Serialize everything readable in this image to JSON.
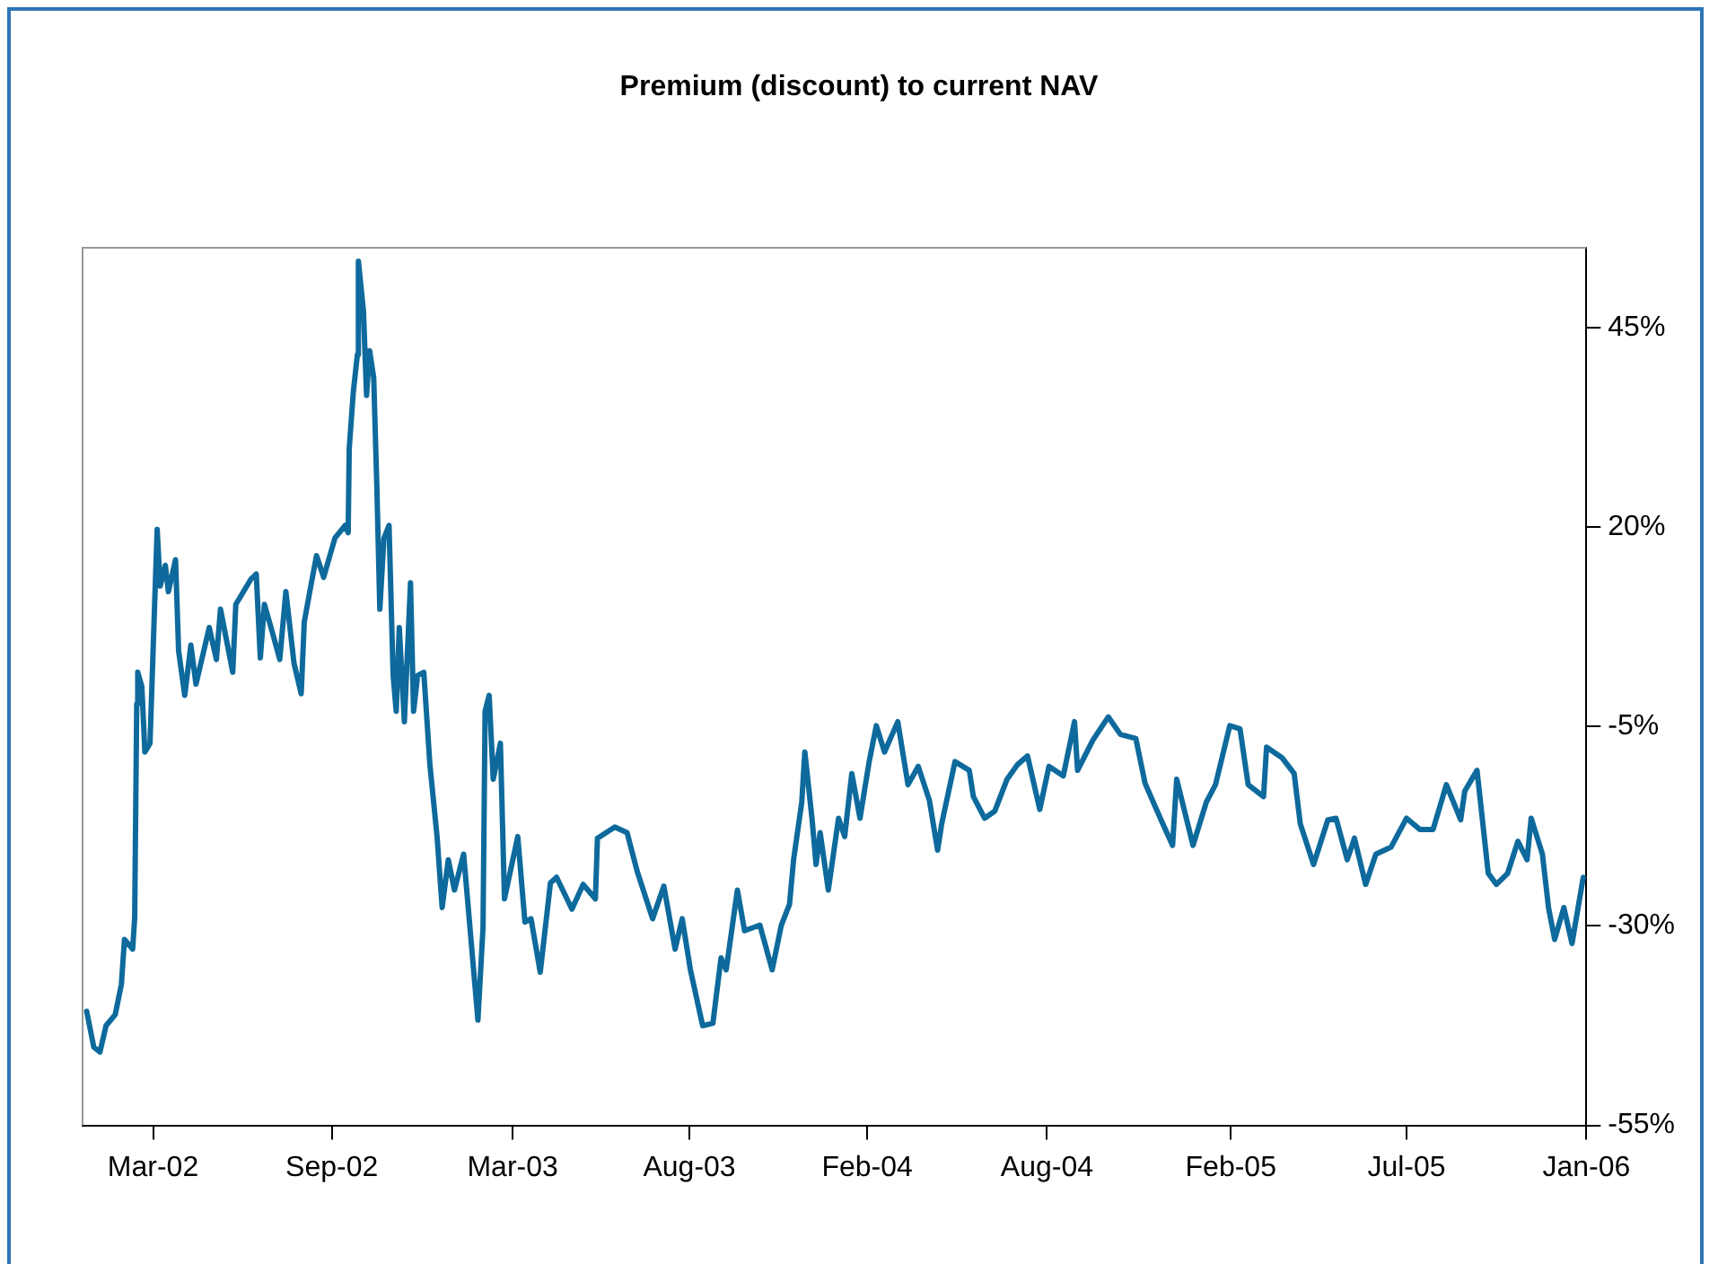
{
  "chart_data": {
    "type": "line",
    "title": "Premium (discount) to current NAV",
    "grid": false,
    "legend": false,
    "marker": "none",
    "line_style": "solid",
    "xlim": [
      "2002-01-05",
      "2006-01-16"
    ],
    "xticks": [
      {
        "value": "2002-03-15",
        "label": "Mar-02"
      },
      {
        "value": "2002-09-06",
        "label": "Sep-02"
      },
      {
        "value": "2003-03-02",
        "label": "Mar-03"
      },
      {
        "value": "2003-08-22",
        "label": "Aug-03"
      },
      {
        "value": "2004-02-12",
        "label": "Feb-04"
      },
      {
        "value": "2004-08-06",
        "label": "Aug-04"
      },
      {
        "value": "2005-02-02",
        "label": "Feb-05"
      },
      {
        "value": "2005-07-24",
        "label": "Jul-05"
      },
      {
        "value": "2006-01-16",
        "label": "Jan-06"
      }
    ],
    "ylim": [
      -55,
      55
    ],
    "yticks": [
      {
        "value": -55,
        "label": "-55%"
      },
      {
        "value": -30,
        "label": "-30%"
      },
      {
        "value": -5,
        "label": "-5%"
      },
      {
        "value": 20,
        "label": "20%"
      },
      {
        "value": 45,
        "label": "45%"
      }
    ],
    "series": [
      {
        "color": "#0e6a9c",
        "x": [
          "2002-01-09",
          "2002-01-16",
          "2002-01-22",
          "2002-01-28",
          "2002-02-06",
          "2002-02-12",
          "2002-02-15",
          "2002-02-23",
          "2002-02-25",
          "2002-02-27",
          "2002-02-28",
          "2002-03-04",
          "2002-03-07",
          "2002-03-12",
          "2002-03-19",
          "2002-03-22",
          "2002-03-27",
          "2002-03-30",
          "2002-04-06",
          "2002-04-09",
          "2002-04-15",
          "2002-04-21",
          "2002-04-26",
          "2002-05-09",
          "2002-05-16",
          "2002-05-20",
          "2002-06-01",
          "2002-06-04",
          "2002-06-19",
          "2002-06-24",
          "2002-06-28",
          "2002-07-02",
          "2002-07-10",
          "2002-07-17",
          "2002-07-23",
          "2002-07-31",
          "2002-08-07",
          "2002-08-10",
          "2002-08-17",
          "2002-08-22",
          "2002-08-29",
          "2002-09-09",
          "2002-09-19",
          "2002-09-22",
          "2002-09-23",
          "2002-09-27",
          "2002-10-01",
          "2002-10-02",
          "2002-10-07",
          "2002-10-10",
          "2002-10-13",
          "2002-10-17",
          "2002-10-20",
          "2002-10-23",
          "2002-10-27",
          "2002-11-01",
          "2002-11-05",
          "2002-11-08",
          "2002-11-11",
          "2002-11-16",
          "2002-11-22",
          "2002-11-25",
          "2002-11-29",
          "2002-12-05",
          "2002-12-11",
          "2002-12-18",
          "2002-12-23",
          "2002-12-29",
          "2003-01-04",
          "2003-01-13",
          "2003-01-19",
          "2003-01-27",
          "2003-02-01",
          "2003-02-03",
          "2003-02-07",
          "2003-02-11",
          "2003-02-18",
          "2003-02-22",
          "2003-03-07",
          "2003-03-14",
          "2003-03-20",
          "2003-03-29",
          "2003-04-08",
          "2003-04-14",
          "2003-04-29",
          "2003-05-10",
          "2003-05-22",
          "2003-05-24",
          "2003-06-10",
          "2003-06-22",
          "2003-07-02",
          "2003-07-17",
          "2003-07-28",
          "2003-08-08",
          "2003-08-15",
          "2003-08-23",
          "2003-09-04",
          "2003-09-14",
          "2003-09-22",
          "2003-09-27",
          "2003-10-08",
          "2003-10-15",
          "2003-10-30",
          "2003-11-11",
          "2003-11-20",
          "2003-11-28",
          "2003-12-02",
          "2003-12-10",
          "2003-12-13",
          "2003-12-20",
          "2003-12-24",
          "2003-12-28",
          "2004-01-05",
          "2004-01-15",
          "2004-01-21",
          "2004-01-28",
          "2004-02-05",
          "2004-02-14",
          "2004-02-21",
          "2004-02-29",
          "2004-03-13",
          "2004-03-23",
          "2004-04-02",
          "2004-04-13",
          "2004-04-21",
          "2004-04-25",
          "2004-05-08",
          "2004-05-22",
          "2004-05-26",
          "2004-06-06",
          "2004-06-16",
          "2004-06-28",
          "2004-07-08",
          "2004-07-18",
          "2004-07-30",
          "2004-08-08",
          "2004-08-22",
          "2004-09-02",
          "2004-09-05",
          "2004-09-20",
          "2004-10-05",
          "2004-10-17",
          "2004-11-01",
          "2004-11-10",
          "2004-11-25",
          "2004-12-07",
          "2004-12-11",
          "2004-12-27",
          "2005-01-09",
          "2005-01-18",
          "2005-02-01",
          "2005-02-11",
          "2005-02-19",
          "2005-03-06",
          "2005-03-09",
          "2005-03-24",
          "2005-04-05",
          "2005-04-11",
          "2005-04-24",
          "2005-05-08",
          "2005-05-16",
          "2005-05-27",
          "2005-06-03",
          "2005-06-14",
          "2005-06-24",
          "2005-07-09",
          "2005-07-24",
          "2005-08-06",
          "2005-08-19",
          "2005-09-01",
          "2005-09-15",
          "2005-09-19",
          "2005-10-01",
          "2005-10-12",
          "2005-10-20",
          "2005-10-31",
          "2005-11-10",
          "2005-11-19",
          "2005-11-23",
          "2005-12-04",
          "2005-12-10",
          "2005-12-16",
          "2005-12-25",
          "2006-01-02",
          "2006-01-13"
        ],
        "values": [
          -40.7,
          -45.2,
          -45.8,
          -42.5,
          -41.1,
          -37.3,
          -31.7,
          -32.9,
          -29,
          -2.2,
          1.8,
          0,
          -8.2,
          -7.1,
          19.7,
          12.6,
          15.2,
          11.9,
          15.9,
          4.5,
          -1.1,
          5.2,
          0.3,
          7.4,
          3.4,
          9.7,
          1.8,
          10.3,
          13.5,
          14.1,
          3.6,
          10.3,
          6.7,
          3.4,
          11.9,
          2.9,
          -0.9,
          8.1,
          13,
          16.4,
          13.7,
          18.6,
          20.2,
          19.3,
          29.8,
          36.9,
          41.6,
          53.3,
          47,
          36.5,
          42.1,
          38.7,
          25.3,
          9.7,
          18.6,
          20.2,
          1.4,
          -3.1,
          7.4,
          -4.4,
          13,
          -3.1,
          1.4,
          1.8,
          -9.8,
          -18.8,
          -27.7,
          -21.7,
          -25.5,
          -21,
          -29.9,
          -41.8,
          -30.2,
          -3.1,
          -1.1,
          -11.6,
          -7.1,
          -26.6,
          -18.8,
          -29.5,
          -29.1,
          -35.8,
          -24.6,
          -23.9,
          -27.9,
          -24.8,
          -26.6,
          -19,
          -17.6,
          -18.3,
          -23.2,
          -29.1,
          -25,
          -32.9,
          -29.1,
          -35.5,
          -42.5,
          -42.2,
          -34,
          -35.5,
          -25.5,
          -30.6,
          -29.9,
          -35.5,
          -29.9,
          -27.3,
          -21.7,
          -14.5,
          -8.2,
          -16.5,
          -22.3,
          -18.3,
          -25.5,
          -16.5,
          -18.8,
          -10.9,
          -16.5,
          -9.4,
          -4.9,
          -8.2,
          -4.4,
          -12.3,
          -10,
          -14.3,
          -20.5,
          -17.2,
          -9.4,
          -10.5,
          -13.8,
          -16.5,
          -15.6,
          -11.6,
          -9.8,
          -8.7,
          -15.4,
          -10,
          -11.2,
          -4.4,
          -10.5,
          -6.7,
          -3.8,
          -6,
          -6.5,
          -12.1,
          -16.5,
          -19.9,
          -11.6,
          -19.9,
          -14.5,
          -12.3,
          -4.9,
          -5.3,
          -12.3,
          -13.8,
          -7.6,
          -8.9,
          -10.9,
          -17.2,
          -22.3,
          -16.7,
          -16.5,
          -21.7,
          -19,
          -24.8,
          -21,
          -20.1,
          -16.5,
          -17.9,
          -17.9,
          -12.3,
          -16.7,
          -13.1,
          -10.5,
          -23.4,
          -24.8,
          -23.4,
          -19.4,
          -21.7,
          -16.5,
          -21,
          -27.7,
          -31.7,
          -27.7,
          -32.2,
          -23.9
        ]
      }
    ]
  }
}
